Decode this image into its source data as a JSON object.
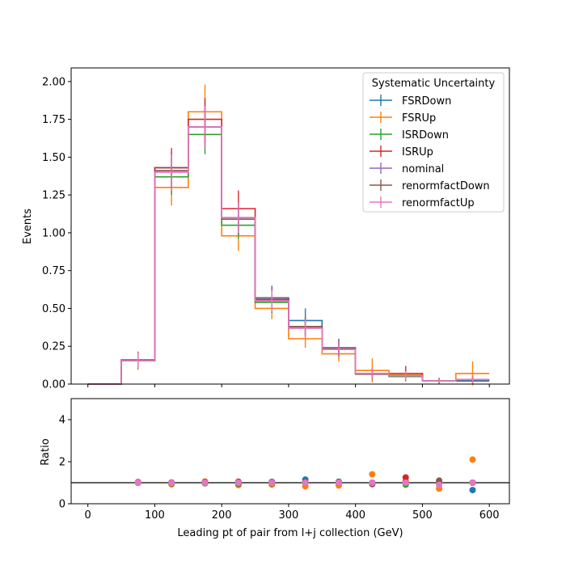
{
  "chart_data": [
    {
      "type": "step",
      "ylabel": "Events",
      "xlim": [
        -25,
        630
      ],
      "ylim": [
        0,
        2.09
      ],
      "yticks": [
        0.0,
        0.25,
        0.5,
        0.75,
        1.0,
        1.25,
        1.5,
        1.75,
        2.0
      ],
      "ytick_labels": [
        "0.00",
        "0.25",
        "0.50",
        "0.75",
        "1.00",
        "1.25",
        "1.50",
        "1.75",
        "2.00"
      ],
      "bin_edges": [
        0,
        50,
        100,
        150,
        200,
        250,
        300,
        350,
        400,
        450,
        500,
        550,
        600
      ],
      "legend": {
        "title": "Systematic Uncertainty",
        "location": "top-right"
      },
      "series": [
        {
          "name": "FSRDown",
          "color": "#1f77b4",
          "values": [
            0.0,
            0.155,
            1.43,
            1.7,
            1.1,
            0.57,
            0.42,
            0.24,
            0.07,
            0.06,
            0.02,
            0.02
          ],
          "errors": [
            0.0,
            0.06,
            0.1,
            0.12,
            0.1,
            0.08,
            0.08,
            0.06,
            0.03,
            0.04,
            0.02,
            0.02
          ]
        },
        {
          "name": "FSRUp",
          "color": "#ff7f0e",
          "values": [
            0.0,
            0.155,
            1.3,
            1.8,
            0.98,
            0.5,
            0.3,
            0.2,
            0.09,
            0.06,
            0.02,
            0.07
          ],
          "errors": [
            0.0,
            0.06,
            0.12,
            0.18,
            0.1,
            0.07,
            0.06,
            0.05,
            0.08,
            0.04,
            0.02,
            0.08
          ]
        },
        {
          "name": "ISRDown",
          "color": "#2ca02c",
          "values": [
            0.0,
            0.155,
            1.37,
            1.65,
            1.05,
            0.54,
            0.37,
            0.23,
            0.07,
            0.05,
            0.02,
            0.03
          ],
          "errors": [
            0.0,
            0.05,
            0.12,
            0.13,
            0.09,
            0.07,
            0.06,
            0.05,
            0.03,
            0.03,
            0.02,
            0.02
          ]
        },
        {
          "name": "ISRUp",
          "color": "#d62728",
          "values": [
            0.0,
            0.16,
            1.43,
            1.75,
            1.16,
            0.56,
            0.38,
            0.23,
            0.07,
            0.07,
            0.02,
            0.03
          ],
          "errors": [
            0.0,
            0.05,
            0.13,
            0.14,
            0.12,
            0.07,
            0.06,
            0.05,
            0.03,
            0.05,
            0.02,
            0.02
          ]
        },
        {
          "name": "nominal",
          "color": "#9467bd",
          "values": [
            0.0,
            0.155,
            1.41,
            1.7,
            1.1,
            0.55,
            0.37,
            0.23,
            0.07,
            0.055,
            0.02,
            0.03
          ],
          "errors": [
            0.0,
            0.05,
            0.12,
            0.14,
            0.1,
            0.07,
            0.06,
            0.05,
            0.03,
            0.03,
            0.02,
            0.02
          ]
        },
        {
          "name": "renormfactDown",
          "color": "#8c564b",
          "values": [
            0.0,
            0.155,
            1.41,
            1.7,
            1.09,
            0.55,
            0.38,
            0.235,
            0.065,
            0.055,
            0.022,
            0.03
          ],
          "errors": [
            0.0,
            0.05,
            0.12,
            0.14,
            0.1,
            0.07,
            0.06,
            0.05,
            0.03,
            0.03,
            0.02,
            0.02
          ]
        },
        {
          "name": "renormfactUp",
          "color": "#e377c2",
          "values": [
            0.0,
            0.155,
            1.4,
            1.7,
            1.1,
            0.55,
            0.37,
            0.23,
            0.07,
            0.055,
            0.02,
            0.03
          ],
          "errors": [
            0.0,
            0.05,
            0.12,
            0.14,
            0.1,
            0.07,
            0.06,
            0.05,
            0.03,
            0.03,
            0.02,
            0.02
          ]
        }
      ]
    },
    {
      "type": "scatter",
      "xlabel": "Leading pt of pair from l+j collection (GeV)",
      "ylabel": "Ratio",
      "xlim": [
        -25,
        630
      ],
      "ylim": [
        0,
        5
      ],
      "xticks": [
        0,
        100,
        200,
        300,
        400,
        500,
        600
      ],
      "xtick_labels": [
        "0",
        "100",
        "200",
        "300",
        "400",
        "500",
        "600"
      ],
      "yticks": [
        0,
        2,
        4
      ],
      "ytick_labels": [
        "0",
        "2",
        "4"
      ],
      "reference_line": 1.0,
      "x": [
        75,
        125,
        175,
        225,
        275,
        325,
        375,
        425,
        475,
        525,
        575
      ],
      "series": [
        {
          "name": "FSRDown",
          "color": "#1f77b4",
          "values": [
            1.0,
            1.0,
            1.0,
            1.0,
            1.04,
            1.15,
            1.05,
            1.0,
            1.08,
            1.0,
            0.65
          ]
        },
        {
          "name": "FSRUp",
          "color": "#ff7f0e",
          "values": [
            1.0,
            0.92,
            1.06,
            0.89,
            0.91,
            0.83,
            0.87,
            1.4,
            1.08,
            0.72,
            2.1
          ]
        },
        {
          "name": "ISRDown",
          "color": "#2ca02c",
          "values": [
            1.0,
            0.97,
            0.97,
            0.95,
            0.98,
            1.0,
            1.0,
            1.0,
            0.91,
            1.0,
            1.0
          ]
        },
        {
          "name": "ISRUp",
          "color": "#d62728",
          "values": [
            1.03,
            1.01,
            1.03,
            1.05,
            1.02,
            1.03,
            1.0,
            1.0,
            1.25,
            1.0,
            1.0
          ]
        },
        {
          "name": "nominal",
          "color": "#9467bd",
          "values": [
            1.0,
            1.0,
            1.0,
            1.0,
            1.0,
            1.0,
            1.0,
            1.0,
            1.0,
            1.0,
            1.0
          ]
        },
        {
          "name": "renormfactDown",
          "color": "#8c564b",
          "values": [
            1.0,
            1.0,
            1.0,
            0.99,
            1.0,
            1.03,
            1.02,
            0.93,
            1.0,
            1.1,
            1.0
          ]
        },
        {
          "name": "renormfactUp",
          "color": "#e377c2",
          "values": [
            1.0,
            0.99,
            1.0,
            1.0,
            1.0,
            1.0,
            1.0,
            1.0,
            1.0,
            0.9,
            1.0
          ]
        }
      ]
    }
  ]
}
